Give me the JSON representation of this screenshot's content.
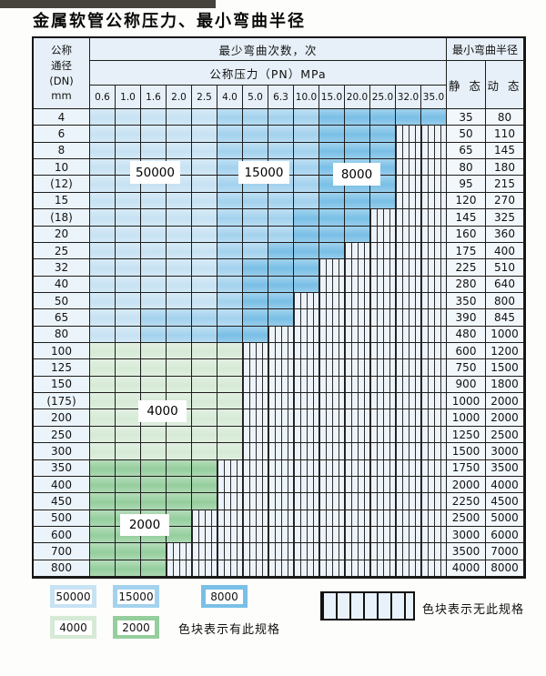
{
  "title": "金属软管公称压力、最小弯曲半径",
  "header": {
    "dn_lines": [
      "公称",
      "通径",
      "(DN)",
      "mm"
    ],
    "bend_times": "最少弯曲次数，次",
    "pressure": "公称压力（PN）MPa",
    "min_radius": "最小弯曲半径",
    "static_label": "静 态",
    "dynamic_label": "动 态"
  },
  "pressures": [
    "0.6",
    "1.0",
    "1.6",
    "2.0",
    "2.5",
    "4.0",
    "5.0",
    "6.3",
    "10.0",
    "15.0",
    "20.0",
    "25.0",
    "32.0",
    "35.0"
  ],
  "palette": {
    "A": "#c7e2f3",
    "B": "#a3d2ee",
    "C": "#79bfe6",
    "G": "#d6ead6",
    "E": "#95ce9d",
    "hatch_bg": "#edf3fa",
    "header_bg": "#e7f0f8"
  },
  "cell_legend": {
    "A": "50000",
    "B": "15000",
    "C": "8000",
    "G": "4000",
    "E": "2000",
    "H": "no-spec-hatched"
  },
  "rows": [
    {
      "dn": "4",
      "static": "35",
      "dynamic": "80",
      "cells": "AAAAABBBBCCCCC"
    },
    {
      "dn": "6",
      "static": "50",
      "dynamic": "110",
      "cells": "AAAAABBBBCCCHH"
    },
    {
      "dn": "8",
      "static": "65",
      "dynamic": "145",
      "cells": "AAAAABBBBCCCHH"
    },
    {
      "dn": "10",
      "static": "80",
      "dynamic": "180",
      "cells": "AAAAABBBBCCCHH"
    },
    {
      "dn": "(12)",
      "static": "95",
      "dynamic": "215",
      "cells": "AAAAABBBBCCCHH"
    },
    {
      "dn": "15",
      "static": "120",
      "dynamic": "270",
      "cells": "AAAAABBBBCCCHH"
    },
    {
      "dn": "(18)",
      "static": "145",
      "dynamic": "325",
      "cells": "AAAAABBBCCCHHH"
    },
    {
      "dn": "20",
      "static": "160",
      "dynamic": "360",
      "cells": "AAAAABBBCCCHHH"
    },
    {
      "dn": "25",
      "static": "175",
      "dynamic": "400",
      "cells": "AAAAABBCCCHHHH"
    },
    {
      "dn": "32",
      "static": "225",
      "dynamic": "510",
      "cells": "AAAAABCCCHHHHH"
    },
    {
      "dn": "40",
      "static": "280",
      "dynamic": "640",
      "cells": "AAAAABCCCHHHHH"
    },
    {
      "dn": "50",
      "static": "350",
      "dynamic": "800",
      "cells": "AAAAABCCHHHHHH"
    },
    {
      "dn": "65",
      "static": "390",
      "dynamic": "845",
      "cells": "AABBBBCCHHHHHH"
    },
    {
      "dn": "80",
      "static": "480",
      "dynamic": "1000",
      "cells": "AABBBCCHHHHHHH"
    },
    {
      "dn": "100",
      "static": "600",
      "dynamic": "1200",
      "cells": "GGGGGGHHHHHHHH"
    },
    {
      "dn": "125",
      "static": "750",
      "dynamic": "1500",
      "cells": "GGGGGGHHHHHHHH"
    },
    {
      "dn": "150",
      "static": "900",
      "dynamic": "1800",
      "cells": "GGGGGGHHHHHHHH"
    },
    {
      "dn": "(175)",
      "static": "1000",
      "dynamic": "2000",
      "cells": "GGGGGGHHHHHHHH"
    },
    {
      "dn": "200",
      "static": "1000",
      "dynamic": "2000",
      "cells": "GGGGGGHHHHHHHH"
    },
    {
      "dn": "250",
      "static": "1250",
      "dynamic": "2500",
      "cells": "GGGGGGHHHHHHHH"
    },
    {
      "dn": "300",
      "static": "1500",
      "dynamic": "3000",
      "cells": "GGGGGGHHHHHHHH"
    },
    {
      "dn": "350",
      "static": "1750",
      "dynamic": "3500",
      "cells": "EEEEEHHHHHHHHH"
    },
    {
      "dn": "400",
      "static": "2000",
      "dynamic": "4000",
      "cells": "EEEEEHHHHHHHHH"
    },
    {
      "dn": "450",
      "static": "2250",
      "dynamic": "4500",
      "cells": "EEEEEHHHHHHHHH"
    },
    {
      "dn": "500",
      "static": "2500",
      "dynamic": "5000",
      "cells": "EEEEHHHHHHHHHH"
    },
    {
      "dn": "600",
      "static": "3000",
      "dynamic": "6000",
      "cells": "EEEEHHHHHHHHHH"
    },
    {
      "dn": "700",
      "static": "3500",
      "dynamic": "7000",
      "cells": "EEEHHHHHHHHHHH"
    },
    {
      "dn": "800",
      "static": "4000",
      "dynamic": "8000",
      "cells": "EEEHHHHHHHHHHH"
    }
  ],
  "overlays": {
    "blue_50000": "50000",
    "blue_15000": "15000",
    "blue_8000": "8000",
    "green_4000": "4000",
    "green_2000": "2000"
  },
  "legend": {
    "swatches": [
      {
        "label": "50000",
        "code": "A"
      },
      {
        "label": "15000",
        "code": "B"
      },
      {
        "label": "8000",
        "code": "C"
      },
      {
        "label": "4000",
        "code": "G"
      },
      {
        "label": "2000",
        "code": "E"
      }
    ],
    "has_spec_text": "色块表示有此规格",
    "no_spec_text": "色块表示无此规格"
  }
}
